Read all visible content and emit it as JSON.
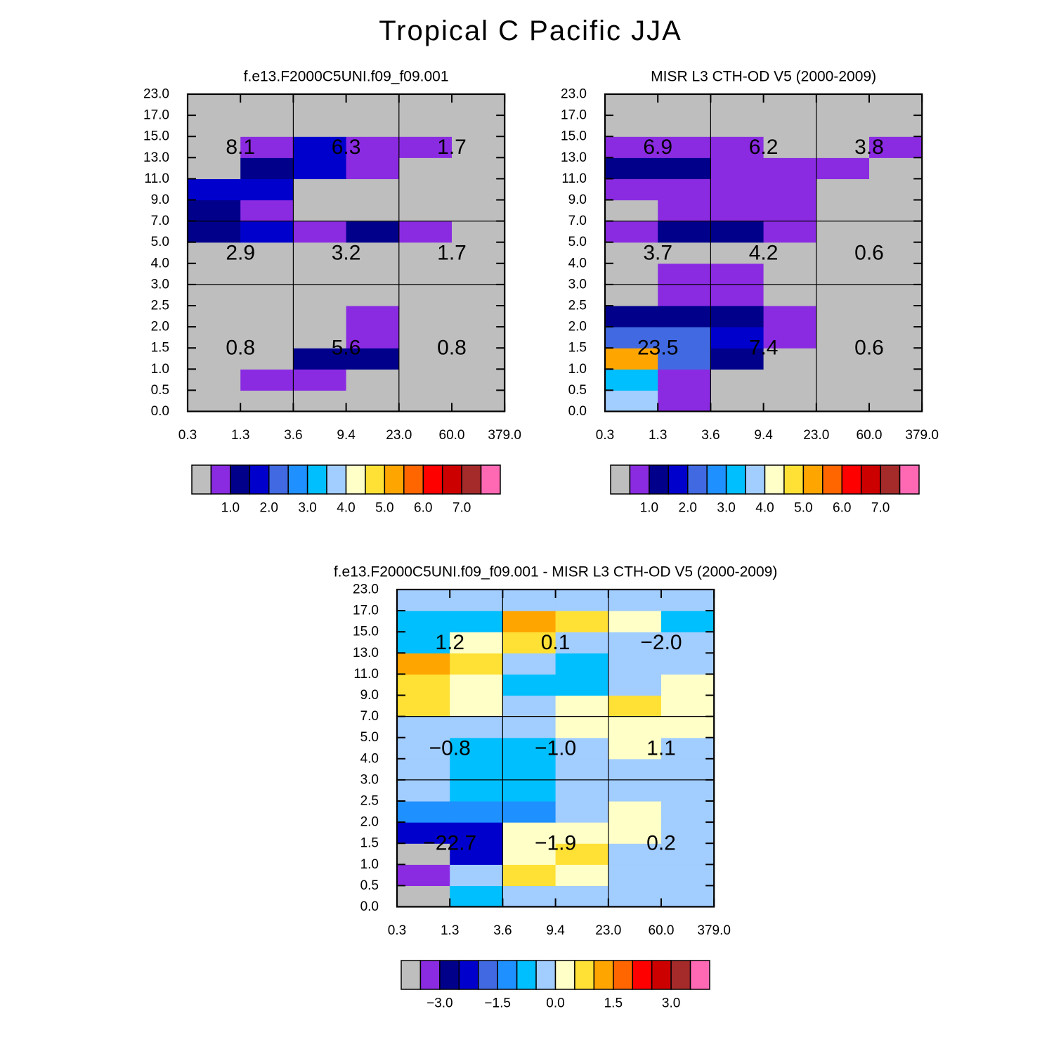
{
  "title": "Tropical C Pacific JJA",
  "palette": [
    "#bebebe",
    "#8a2be2",
    "#00008b",
    "#0000cd",
    "#4169e1",
    "#1e90ff",
    "#00bfff",
    "#a2cdff",
    "#ffffc8",
    "#ffe135",
    "#ffa500",
    "#ff6600",
    "#ff0000",
    "#cd0000",
    "#a52a2a",
    "#ff69b4"
  ],
  "chart_data": [
    {
      "type": "heatmap",
      "title": "f.e13.F2000C5UNI.f09_f09.001",
      "x_tick_labels": [
        "0.3",
        "1.3",
        "3.6",
        "9.4",
        "23.0",
        "60.0",
        "379.0"
      ],
      "y_tick_labels": [
        "0.0",
        "0.5",
        "1.0",
        "1.5",
        "2.0",
        "2.5",
        "3.0",
        "4.0",
        "5.0",
        "7.0",
        "9.0",
        "11.0",
        "13.0",
        "15.0",
        "17.0",
        "23.0"
      ],
      "cells": [
        [
          0,
          0,
          0,
          0,
          0,
          0
        ],
        [
          0,
          1,
          1,
          0,
          0,
          0
        ],
        [
          0,
          0,
          2,
          2,
          0,
          0
        ],
        [
          0,
          0,
          0,
          1,
          0,
          0
        ],
        [
          0,
          0,
          0,
          1,
          0,
          0
        ],
        [
          0,
          0,
          0,
          0,
          0,
          0
        ],
        [
          0,
          0,
          0,
          0,
          0,
          0
        ],
        [
          0,
          0,
          0,
          0,
          0,
          0
        ],
        [
          2,
          3,
          1,
          2,
          1,
          0
        ],
        [
          2,
          1,
          0,
          0,
          0,
          0
        ],
        [
          3,
          3,
          0,
          0,
          0,
          0
        ],
        [
          0,
          2,
          3,
          1,
          0,
          0
        ],
        [
          0,
          1,
          3,
          1,
          1,
          0
        ],
        [
          0,
          0,
          0,
          0,
          0,
          0
        ],
        [
          0,
          0,
          0,
          0,
          0,
          0
        ]
      ],
      "block_labels": [
        {
          "row": "high",
          "col": "thin",
          "text": "8.1"
        },
        {
          "row": "high",
          "col": "medium",
          "text": "6.3"
        },
        {
          "row": "high",
          "col": "thick",
          "text": "1.7"
        },
        {
          "row": "middle",
          "col": "thin",
          "text": "2.9"
        },
        {
          "row": "middle",
          "col": "medium",
          "text": "3.2"
        },
        {
          "row": "middle",
          "col": "thick",
          "text": "1.7"
        },
        {
          "row": "low",
          "col": "thin",
          "text": "0.8"
        },
        {
          "row": "low",
          "col": "medium",
          "text": "5.6"
        },
        {
          "row": "low",
          "col": "thick",
          "text": "0.8"
        }
      ],
      "colorbar_labels": [
        "1.0",
        "2.0",
        "3.0",
        "4.0",
        "5.0",
        "6.0",
        "7.0"
      ]
    },
    {
      "type": "heatmap",
      "title": "MISR L3 CTH-OD V5 (2000-2009)",
      "x_tick_labels": [
        "0.3",
        "1.3",
        "3.6",
        "9.4",
        "23.0",
        "60.0",
        "379.0"
      ],
      "y_tick_labels": [
        "0.0",
        "0.5",
        "1.0",
        "1.5",
        "2.0",
        "2.5",
        "3.0",
        "4.0",
        "5.0",
        "7.0",
        "9.0",
        "11.0",
        "13.0",
        "15.0",
        "17.0",
        "23.0"
      ],
      "cells": [
        [
          7,
          1,
          0,
          0,
          0,
          0
        ],
        [
          6,
          1,
          0,
          0,
          0,
          0
        ],
        [
          10,
          4,
          2,
          0,
          0,
          0
        ],
        [
          4,
          4,
          3,
          1,
          0,
          0
        ],
        [
          2,
          2,
          2,
          1,
          0,
          0
        ],
        [
          0,
          1,
          1,
          0,
          0,
          0
        ],
        [
          0,
          1,
          1,
          0,
          0,
          0
        ],
        [
          0,
          0,
          0,
          0,
          0,
          0
        ],
        [
          1,
          2,
          2,
          1,
          0,
          0
        ],
        [
          0,
          1,
          1,
          1,
          0,
          0
        ],
        [
          1,
          1,
          1,
          1,
          0,
          0
        ],
        [
          2,
          2,
          1,
          1,
          1,
          0
        ],
        [
          1,
          1,
          1,
          0,
          0,
          1
        ],
        [
          0,
          0,
          0,
          0,
          0,
          0
        ],
        [
          0,
          0,
          0,
          0,
          0,
          0
        ]
      ],
      "block_labels": [
        {
          "row": "high",
          "col": "thin",
          "text": "6.9"
        },
        {
          "row": "high",
          "col": "medium",
          "text": "6.2"
        },
        {
          "row": "high",
          "col": "thick",
          "text": "3.8"
        },
        {
          "row": "middle",
          "col": "thin",
          "text": "3.7"
        },
        {
          "row": "middle",
          "col": "medium",
          "text": "4.2"
        },
        {
          "row": "middle",
          "col": "thick",
          "text": "0.6"
        },
        {
          "row": "low",
          "col": "thin",
          "text": "23.5"
        },
        {
          "row": "low",
          "col": "medium",
          "text": "7.4"
        },
        {
          "row": "low",
          "col": "thick",
          "text": "0.6"
        }
      ],
      "colorbar_labels": [
        "1.0",
        "2.0",
        "3.0",
        "4.0",
        "5.0",
        "6.0",
        "7.0"
      ]
    },
    {
      "type": "heatmap",
      "title": "f.e13.F2000C5UNI.f09_f09.001 - MISR L3 CTH-OD V5 (2000-2009)",
      "x_tick_labels": [
        "0.3",
        "1.3",
        "3.6",
        "9.4",
        "23.0",
        "60.0",
        "379.0"
      ],
      "y_tick_labels": [
        "0.0",
        "0.5",
        "1.0",
        "1.5",
        "2.0",
        "2.5",
        "3.0",
        "4.0",
        "5.0",
        "7.0",
        "9.0",
        "11.0",
        "13.0",
        "15.0",
        "17.0",
        "23.0"
      ],
      "cells": [
        [
          0,
          6,
          7,
          7,
          7,
          7
        ],
        [
          1,
          7,
          9,
          8,
          7,
          7
        ],
        [
          0,
          3,
          8,
          9,
          7,
          7
        ],
        [
          3,
          3,
          8,
          8,
          8,
          7
        ],
        [
          5,
          5,
          5,
          7,
          8,
          7
        ],
        [
          7,
          6,
          6,
          7,
          7,
          7
        ],
        [
          7,
          6,
          6,
          7,
          7,
          7
        ],
        [
          7,
          6,
          6,
          7,
          8,
          7
        ],
        [
          7,
          7,
          7,
          8,
          8,
          8
        ],
        [
          9,
          8,
          7,
          8,
          9,
          8
        ],
        [
          9,
          8,
          6,
          6,
          7,
          8
        ],
        [
          10,
          9,
          7,
          6,
          7,
          7
        ],
        [
          6,
          8,
          9,
          7,
          7,
          7
        ],
        [
          6,
          6,
          10,
          9,
          8,
          6
        ],
        [
          7,
          7,
          7,
          7,
          7,
          7
        ]
      ],
      "block_labels": [
        {
          "row": "high",
          "col": "thin",
          "text": "1.2"
        },
        {
          "row": "high",
          "col": "medium",
          "text": "0.1"
        },
        {
          "row": "high",
          "col": "thick",
          "text": "−2.0"
        },
        {
          "row": "middle",
          "col": "thin",
          "text": "−0.8"
        },
        {
          "row": "middle",
          "col": "medium",
          "text": "−1.0"
        },
        {
          "row": "middle",
          "col": "thick",
          "text": "1.1"
        },
        {
          "row": "low",
          "col": "thin",
          "text": "−22.7"
        },
        {
          "row": "low",
          "col": "medium",
          "text": "−1.9"
        },
        {
          "row": "low",
          "col": "thick",
          "text": "0.2"
        }
      ],
      "colorbar_labels": [
        "−3.0",
        "−1.5",
        "0.0",
        "1.5",
        "3.0"
      ]
    }
  ]
}
